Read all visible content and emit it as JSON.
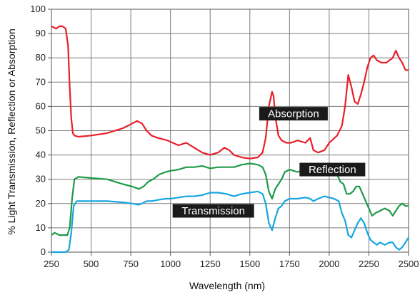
{
  "chart_data": {
    "type": "line",
    "title": "",
    "xlabel": "Wavelength (nm)",
    "ylabel": "% Light Transmission, Reflection or Absorption",
    "xlim": [
      250,
      2500
    ],
    "ylim": [
      0,
      100
    ],
    "xticks": [
      250,
      500,
      750,
      1000,
      1250,
      1500,
      1750,
      2000,
      2250,
      2500
    ],
    "yticks": [
      0,
      10,
      20,
      30,
      40,
      50,
      60,
      70,
      80,
      90,
      100
    ],
    "grid": true,
    "legend": "none (series labelled inline)",
    "series": [
      {
        "name": "Absorption",
        "color": "#e8202a",
        "x": [
          250,
          280,
          300,
          320,
          340,
          355,
          365,
          375,
          385,
          395,
          420,
          500,
          600,
          700,
          760,
          790,
          820,
          850,
          880,
          920,
          980,
          1050,
          1100,
          1150,
          1200,
          1250,
          1300,
          1340,
          1370,
          1400,
          1450,
          1500,
          1550,
          1580,
          1600,
          1620,
          1640,
          1650,
          1660,
          1680,
          1700,
          1730,
          1760,
          1800,
          1850,
          1880,
          1900,
          1930,
          1970,
          2000,
          2050,
          2080,
          2100,
          2120,
          2140,
          2160,
          2180,
          2200,
          2220,
          2240,
          2260,
          2280,
          2300,
          2330,
          2360,
          2400,
          2420,
          2440,
          2460,
          2480,
          2500
        ],
        "y": [
          93,
          92,
          93,
          93,
          92,
          85,
          68,
          55,
          49,
          48,
          47.5,
          48,
          49,
          51,
          53,
          54,
          53,
          50,
          48,
          47,
          46,
          44,
          45,
          43,
          41,
          40,
          41,
          43,
          42,
          40,
          39,
          38.5,
          39,
          41,
          47,
          60,
          66,
          64,
          56,
          48,
          46,
          45,
          45,
          46,
          45,
          47,
          42,
          41,
          42,
          45,
          48,
          52,
          60,
          73,
          68,
          62,
          61,
          65,
          70,
          76,
          80,
          81,
          79,
          78,
          78,
          80,
          83,
          80,
          78,
          75,
          75
        ]
      },
      {
        "name": "Reflection",
        "color": "#1f9a48",
        "x": [
          250,
          270,
          300,
          330,
          350,
          365,
          380,
          395,
          420,
          500,
          600,
          700,
          760,
          800,
          830,
          860,
          890,
          930,
          970,
          1000,
          1050,
          1100,
          1150,
          1200,
          1250,
          1300,
          1350,
          1400,
          1450,
          1500,
          1550,
          1580,
          1600,
          1620,
          1640,
          1660,
          1680,
          1700,
          1720,
          1750,
          1800,
          1850,
          1870,
          1890,
          1910,
          1950,
          2000,
          2050,
          2070,
          2090,
          2110,
          2130,
          2150,
          2170,
          2190,
          2210,
          2230,
          2250,
          2270,
          2290,
          2320,
          2350,
          2380,
          2400,
          2420,
          2440,
          2460,
          2480,
          2500
        ],
        "y": [
          7,
          8,
          7,
          7,
          7,
          10,
          22,
          30,
          31,
          30.5,
          30,
          28,
          27,
          26,
          27,
          29,
          30,
          32,
          33,
          33.5,
          34,
          35,
          35,
          35.5,
          34.5,
          35,
          35,
          35,
          36,
          36.5,
          36,
          35,
          32,
          25,
          22,
          26,
          28,
          30,
          33,
          34,
          33,
          34,
          35,
          32,
          33,
          34,
          34,
          32,
          29,
          28,
          24,
          24,
          25,
          27,
          27,
          24,
          21,
          18,
          15,
          16,
          17,
          18,
          17,
          15,
          17,
          19,
          20,
          19,
          19
        ]
      },
      {
        "name": "Transmission",
        "color": "#17a6e0",
        "x": [
          250,
          280,
          310,
          340,
          360,
          375,
          390,
          410,
          450,
          500,
          600,
          700,
          760,
          800,
          820,
          850,
          880,
          920,
          970,
          1000,
          1050,
          1100,
          1150,
          1200,
          1250,
          1300,
          1350,
          1400,
          1450,
          1500,
          1550,
          1580,
          1600,
          1620,
          1640,
          1660,
          1680,
          1700,
          1720,
          1750,
          1800,
          1850,
          1880,
          1900,
          1930,
          1970,
          2000,
          2030,
          2060,
          2080,
          2100,
          2120,
          2140,
          2160,
          2180,
          2200,
          2220,
          2240,
          2260,
          2280,
          2300,
          2320,
          2350,
          2380,
          2400,
          2420,
          2440,
          2460,
          2480,
          2500
        ],
        "y": [
          0,
          0,
          0,
          0,
          1,
          8,
          19,
          21,
          21,
          21,
          21,
          20.5,
          20,
          19.5,
          20,
          21,
          21,
          21.5,
          22,
          22,
          22.5,
          23,
          23,
          23.5,
          24.5,
          24.5,
          24,
          23,
          24,
          24.5,
          25,
          24,
          20,
          12,
          9,
          14,
          18,
          19,
          21,
          22,
          22,
          22.5,
          22,
          21,
          22,
          23,
          22.5,
          22,
          21,
          16,
          13,
          7,
          6,
          9,
          12,
          14,
          12,
          8,
          5,
          4,
          3,
          4,
          3,
          4,
          4,
          2,
          1,
          2,
          4,
          6
        ]
      }
    ],
    "annotations": [
      "Absorption",
      "Reflection",
      "Transmission"
    ]
  }
}
